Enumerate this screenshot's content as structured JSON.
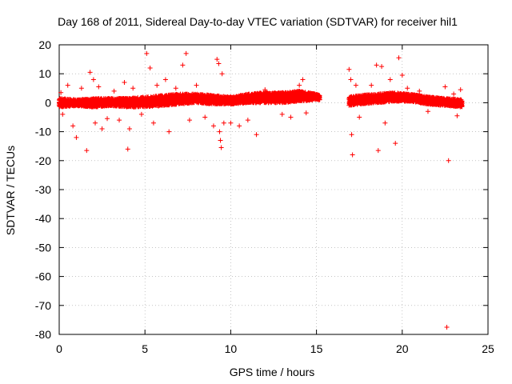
{
  "chart_data": {
    "type": "scatter",
    "title": "Day 168 of 2011, Sidereal Day-to-day VTEC variation (SDTVAR) for receiver hil1",
    "xlabel": "GPS time / hours",
    "ylabel": "SDTVAR / TECUs",
    "xlim": [
      0,
      25
    ],
    "ylim": [
      -80,
      20
    ],
    "xticks": [
      0,
      5,
      10,
      15,
      20,
      25
    ],
    "yticks": [
      20,
      10,
      0,
      -10,
      -20,
      -30,
      -40,
      -50,
      -60,
      -70,
      -80
    ],
    "grid": true,
    "marker": "+",
    "color": "#ff0000",
    "band": [
      [
        0.0,
        -1.5,
        1.5
      ],
      [
        1.0,
        -1.0,
        1.0
      ],
      [
        2.0,
        -1.5,
        1.5
      ],
      [
        3.0,
        -1.0,
        1.5
      ],
      [
        4.0,
        -1.5,
        1.5
      ],
      [
        5.0,
        -1.5,
        2.0
      ],
      [
        6.0,
        -1.0,
        2.5
      ],
      [
        7.0,
        -0.5,
        3.0
      ],
      [
        8.0,
        0.0,
        3.0
      ],
      [
        9.0,
        -0.5,
        2.5
      ],
      [
        10.0,
        -0.5,
        2.0
      ],
      [
        11.0,
        0.0,
        3.0
      ],
      [
        12.0,
        0.0,
        3.5
      ],
      [
        13.0,
        0.0,
        3.5
      ],
      [
        14.0,
        0.5,
        4.0
      ],
      [
        15.0,
        1.0,
        3.0
      ],
      [
        15.2,
        1.0,
        2.5
      ],
      [
        16.9,
        -1.0,
        2.0
      ],
      [
        17.5,
        -0.5,
        2.5
      ],
      [
        18.5,
        0.0,
        3.0
      ],
      [
        19.5,
        0.5,
        3.5
      ],
      [
        20.5,
        0.5,
        3.0
      ],
      [
        21.5,
        -0.5,
        2.0
      ],
      [
        22.5,
        -1.0,
        1.5
      ],
      [
        23.5,
        -1.5,
        1.0
      ]
    ],
    "outliers": [
      [
        0.1,
        3.5
      ],
      [
        0.2,
        -4.0
      ],
      [
        0.5,
        6.0
      ],
      [
        0.8,
        -8.0
      ],
      [
        1.0,
        -12.0
      ],
      [
        1.3,
        5.0
      ],
      [
        1.6,
        -16.5
      ],
      [
        1.8,
        10.5
      ],
      [
        2.0,
        8.0
      ],
      [
        2.1,
        -7.0
      ],
      [
        2.3,
        5.5
      ],
      [
        2.5,
        -9.0
      ],
      [
        2.8,
        -5.5
      ],
      [
        3.2,
        4.0
      ],
      [
        3.5,
        -6.0
      ],
      [
        3.8,
        7.0
      ],
      [
        4.0,
        -16.0
      ],
      [
        4.1,
        -9.0
      ],
      [
        4.3,
        5.0
      ],
      [
        4.8,
        -4.0
      ],
      [
        5.1,
        17.0
      ],
      [
        5.3,
        12.0
      ],
      [
        5.5,
        -7.0
      ],
      [
        5.7,
        6.0
      ],
      [
        6.2,
        8.0
      ],
      [
        6.4,
        -10.0
      ],
      [
        6.8,
        5.0
      ],
      [
        7.2,
        13.0
      ],
      [
        7.4,
        17.0
      ],
      [
        7.6,
        -6.0
      ],
      [
        8.0,
        6.0
      ],
      [
        8.5,
        -5.0
      ],
      [
        9.0,
        -8.0
      ],
      [
        9.2,
        15.0
      ],
      [
        9.3,
        13.5
      ],
      [
        9.35,
        -10.0
      ],
      [
        9.4,
        -13.0
      ],
      [
        9.45,
        -15.5
      ],
      [
        9.5,
        10.0
      ],
      [
        9.6,
        -7.0
      ],
      [
        10.0,
        -7.0
      ],
      [
        10.5,
        -8.0
      ],
      [
        11.0,
        -6.0
      ],
      [
        11.5,
        -11.0
      ],
      [
        12.0,
        4.5
      ],
      [
        13.0,
        -4.0
      ],
      [
        13.5,
        -5.0
      ],
      [
        14.0,
        6.0
      ],
      [
        14.2,
        8.0
      ],
      [
        14.4,
        -3.5
      ],
      [
        16.9,
        11.5
      ],
      [
        17.0,
        8.0
      ],
      [
        17.05,
        -11.0
      ],
      [
        17.1,
        -18.0
      ],
      [
        17.3,
        6.0
      ],
      [
        17.5,
        -5.0
      ],
      [
        18.2,
        6.0
      ],
      [
        18.5,
        13.0
      ],
      [
        18.6,
        -16.5
      ],
      [
        18.8,
        12.5
      ],
      [
        19.0,
        -7.0
      ],
      [
        19.3,
        8.0
      ],
      [
        19.6,
        -14.0
      ],
      [
        19.8,
        15.5
      ],
      [
        20.0,
        9.5
      ],
      [
        20.3,
        5.0
      ],
      [
        21.0,
        4.0
      ],
      [
        21.5,
        -3.0
      ],
      [
        22.5,
        5.5
      ],
      [
        22.7,
        -20.0
      ],
      [
        22.6,
        -77.5
      ],
      [
        23.0,
        3.0
      ],
      [
        23.2,
        -4.5
      ],
      [
        23.4,
        4.5
      ]
    ]
  }
}
